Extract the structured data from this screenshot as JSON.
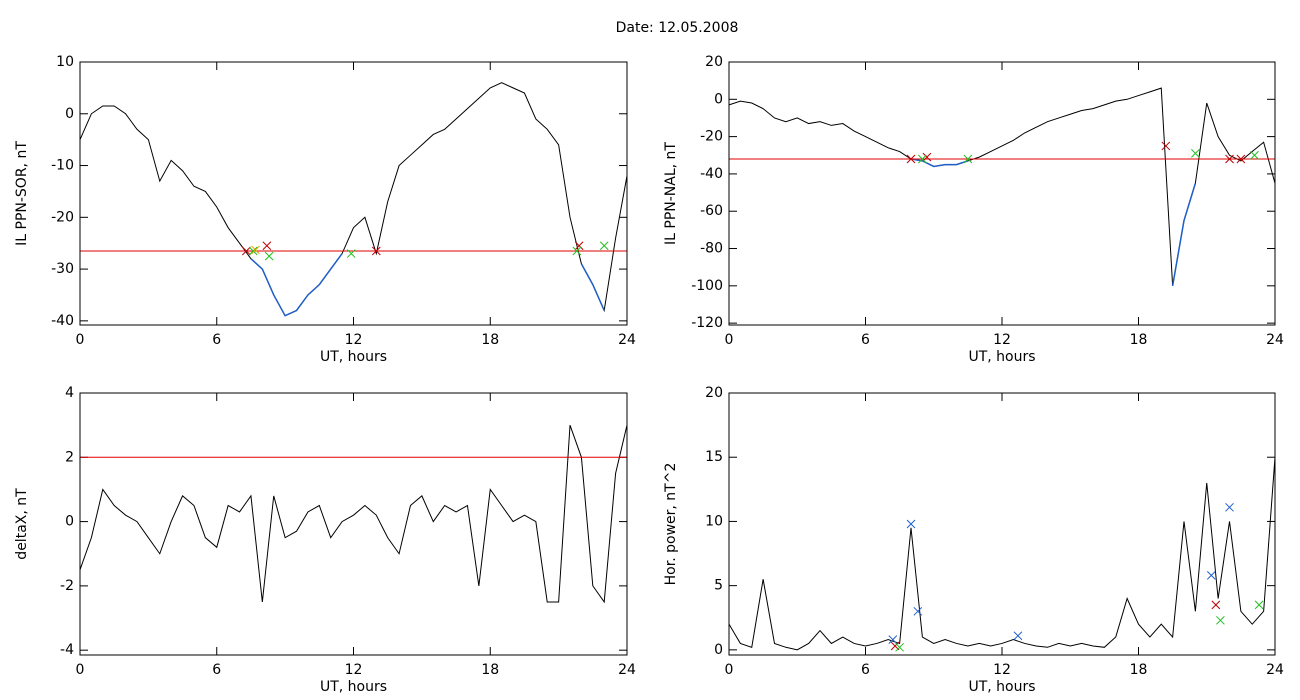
{
  "title": "Date:  12.05.2008",
  "chart_data": [
    {
      "type": "line",
      "ylabel": "IL PPN-SOR, nT",
      "xlabel": "UT, hours",
      "x": [
        0,
        0.5,
        1,
        1.5,
        2,
        2.5,
        3,
        3.5,
        4,
        4.5,
        5,
        5.5,
        6,
        6.5,
        7,
        7.5,
        8,
        8.5,
        9,
        9.5,
        10,
        10.5,
        11,
        11.5,
        12,
        12.5,
        13,
        13.5,
        14,
        14.5,
        15,
        15.5,
        16,
        16.5,
        17,
        17.5,
        18,
        18.5,
        19,
        19.5,
        20,
        20.5,
        21,
        21.5,
        22,
        22.5,
        23,
        23.5,
        24
      ],
      "values": [
        -5,
        0,
        1.5,
        1.5,
        0,
        -3,
        -5,
        -13,
        -9,
        -11,
        -14,
        -15,
        -18,
        -22,
        -25,
        -28,
        -30,
        -35,
        -39,
        -38,
        -35,
        -33,
        -30,
        -27,
        -22,
        -20,
        -27,
        -17,
        -10,
        -8,
        -6,
        -4,
        -3,
        -1,
        1,
        3,
        5,
        6,
        5,
        4,
        -1,
        -3,
        -6,
        -20,
        -29,
        -33,
        -38,
        -24,
        -12
      ],
      "color": "#000000",
      "below_color": "#1f5fc8",
      "threshold": -26.5,
      "threshold_color": "#e00000",
      "markers": [
        {
          "color": "#c00000",
          "x": [
            7.3,
            8.2,
            13,
            21.9
          ],
          "values": [
            -26.5,
            -25.5,
            -26.5,
            -25.5
          ]
        },
        {
          "color": "#20c020",
          "x": [
            7.6,
            8.3,
            11.9,
            21.8,
            23.0
          ],
          "values": [
            -26.5,
            -27.5,
            -27,
            -26.5,
            -25.5
          ]
        },
        {
          "color": "#e0a000",
          "x": [
            7.7
          ],
          "values": [
            -26.3
          ]
        }
      ],
      "xlim": [
        0,
        24
      ],
      "xticks": [
        0,
        6,
        12,
        18,
        24
      ],
      "ylim": [
        -40.8,
        10
      ],
      "yticks": [
        10,
        0,
        -10,
        -20,
        -30,
        -40
      ]
    },
    {
      "type": "line",
      "ylabel": "IL PPN-NAL, nT",
      "xlabel": "UT, hours",
      "x": [
        0,
        0.5,
        1,
        1.5,
        2,
        2.5,
        3,
        3.5,
        4,
        4.5,
        5,
        5.5,
        6,
        6.5,
        7,
        7.5,
        8,
        8.5,
        9,
        9.5,
        10,
        10.5,
        11,
        11.5,
        12,
        12.5,
        13,
        13.5,
        14,
        14.5,
        15,
        15.5,
        16,
        16.5,
        17,
        17.5,
        18,
        18.5,
        19,
        19.5,
        20,
        20.5,
        21,
        21.5,
        22,
        22.5,
        23,
        23.5,
        24
      ],
      "values": [
        -3,
        -1,
        -2,
        -5,
        -10,
        -12,
        -10,
        -13,
        -12,
        -14,
        -13,
        -17,
        -20,
        -23,
        -26,
        -28,
        -32,
        -33,
        -36,
        -35,
        -35,
        -33,
        -31,
        -28,
        -25,
        -22,
        -18,
        -15,
        -12,
        -10,
        -8,
        -6,
        -5,
        -3,
        -1,
        0,
        2,
        4,
        6,
        -100,
        -65,
        -45,
        -2,
        -20,
        -30,
        -33,
        -28,
        -23,
        -45
      ],
      "color": "#000000",
      "below_color": "#1f5fc8",
      "threshold": -32,
      "threshold_color": "#e00000",
      "markers": [
        {
          "color": "#c00000",
          "x": [
            8.0,
            8.7,
            19.2,
            22.0,
            22.5
          ],
          "values": [
            -32,
            -31,
            -25,
            -32,
            -32
          ]
        },
        {
          "color": "#20c020",
          "x": [
            8.5,
            10.5,
            20.5,
            23.1
          ],
          "values": [
            -32,
            -32,
            -29,
            -30
          ]
        }
      ],
      "xlim": [
        0,
        24
      ],
      "xticks": [
        0,
        6,
        12,
        18,
        24
      ],
      "ylim": [
        -121,
        20
      ],
      "yticks": [
        20,
        0,
        -20,
        -40,
        -60,
        -80,
        -100,
        -120
      ]
    },
    {
      "type": "line",
      "ylabel": "deltaX, nT",
      "xlabel": "UT, hours",
      "x": [
        0,
        0.5,
        1,
        1.5,
        2,
        2.5,
        3,
        3.5,
        4,
        4.5,
        5,
        5.5,
        6,
        6.5,
        7,
        7.5,
        8,
        8.5,
        9,
        9.5,
        10,
        10.5,
        11,
        11.5,
        12,
        12.5,
        13,
        13.5,
        14,
        14.5,
        15,
        15.5,
        16,
        16.5,
        17,
        17.5,
        18,
        18.5,
        19,
        19.5,
        20,
        20.5,
        21,
        21.5,
        22,
        22.5,
        23,
        23.5,
        24
      ],
      "values": [
        -1.5,
        -0.5,
        1,
        0.5,
        0.2,
        0,
        -0.5,
        -1,
        0,
        0.8,
        0.5,
        -0.5,
        -0.8,
        0.5,
        0.3,
        0.8,
        -2.5,
        0.8,
        -0.5,
        -0.3,
        0.3,
        0.5,
        -0.5,
        0,
        0.2,
        0.5,
        0.2,
        -0.5,
        -1,
        0.5,
        0.8,
        0,
        0.5,
        0.3,
        0.5,
        -2,
        1,
        0.5,
        0,
        0.2,
        0,
        -2.5,
        -2.5,
        3,
        2,
        -2,
        -2.5,
        1.5,
        3
      ],
      "color": "#000000",
      "threshold": 2,
      "threshold_color": "#e00000",
      "xlim": [
        0,
        24
      ],
      "xticks": [
        0,
        6,
        12,
        18,
        24
      ],
      "ylim": [
        -4.15,
        4
      ],
      "yticks": [
        4,
        2,
        0,
        -2,
        -4
      ]
    },
    {
      "type": "line",
      "ylabel": "Hor. power, nT^2",
      "xlabel": "UT, hours",
      "x": [
        0,
        0.5,
        1,
        1.5,
        2,
        2.5,
        3,
        3.5,
        4,
        4.5,
        5,
        5.5,
        6,
        6.5,
        7,
        7.5,
        8,
        8.5,
        9,
        9.5,
        10,
        10.5,
        11,
        11.5,
        12,
        12.5,
        13,
        13.5,
        14,
        14.5,
        15,
        15.5,
        16,
        16.5,
        17,
        17.5,
        18,
        18.5,
        19,
        19.5,
        20,
        20.5,
        21,
        21.5,
        22,
        22.5,
        23,
        23.5,
        24
      ],
      "values": [
        2,
        0.5,
        0.2,
        5.5,
        0.5,
        0.2,
        0,
        0.5,
        1.5,
        0.5,
        1,
        0.5,
        0.3,
        0.5,
        0.8,
        0.5,
        9.5,
        1,
        0.5,
        0.8,
        0.5,
        0.3,
        0.5,
        0.3,
        0.5,
        0.8,
        0.5,
        0.3,
        0.2,
        0.5,
        0.3,
        0.5,
        0.3,
        0.2,
        1,
        4,
        2,
        1,
        2,
        1,
        10,
        3,
        13,
        4,
        10,
        3,
        2,
        3,
        15
      ],
      "color": "#000000",
      "markers": [
        {
          "color": "#2060d0",
          "x": [
            7.2,
            8.0,
            8.3,
            12.7,
            21.2,
            22.0
          ],
          "values": [
            0.8,
            9.8,
            3,
            1.1,
            5.8,
            11.1
          ]
        },
        {
          "color": "#c00000",
          "x": [
            7.3,
            21.4
          ],
          "values": [
            0.3,
            3.5
          ]
        },
        {
          "color": "#20c020",
          "x": [
            7.5,
            21.6,
            23.3
          ],
          "values": [
            0.2,
            2.3,
            3.5
          ]
        }
      ],
      "xlim": [
        0,
        24
      ],
      "xticks": [
        0,
        6,
        12,
        18,
        24
      ],
      "ylim": [
        -0.4,
        20
      ],
      "yticks": [
        20,
        15,
        10,
        5,
        0
      ]
    }
  ]
}
